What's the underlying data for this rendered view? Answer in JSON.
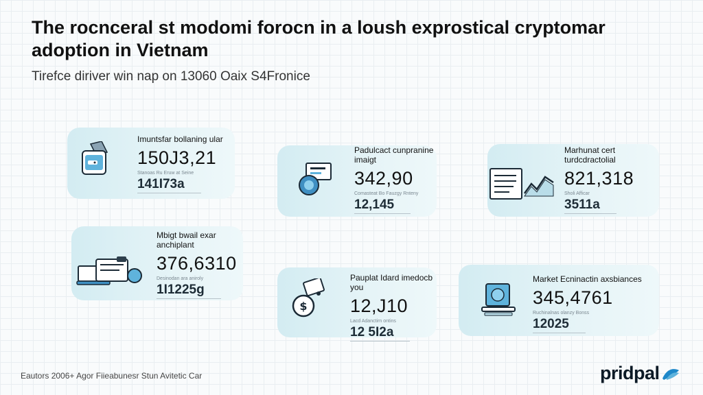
{
  "header": {
    "title": "The rocnceral st modomi forocn in a loush exprostical cryptomar adoption in Vietnam",
    "subtitle": "Tirefce diriver win nap on 13060 Oaix S4Fronice"
  },
  "cards": [
    {
      "label": "Imuntsfar bollaning ular",
      "value": "150J3,21",
      "note": "Stanoas Ru Eruw at Seine",
      "subvalue": "141I73a",
      "icon": "wallet-icon"
    },
    {
      "label": "Padulcact cunpranine imaigt",
      "value": "342,90",
      "note": "Comasteat Bo Fauzgy Rnteny",
      "subvalue": "12,145",
      "icon": "coin-card-icon"
    },
    {
      "label": "Marhunat cert turdcdractolial",
      "value": "821,318",
      "note": "Sholi Afficar",
      "subvalue": "3511a",
      "icon": "document-chart-icon"
    },
    {
      "label": "Mbigt bwail exar anchiplant",
      "value": "376,6310",
      "note": "Desinodan ara aniroly",
      "subvalue": "1I1225g",
      "icon": "laptop-payment-icon"
    },
    {
      "label": "Pauplat Idard imedocb you",
      "value": "12,J10",
      "note": "Lacd Adanctirn ontins",
      "subvalue": "12 5I2a",
      "icon": "dollar-coin-icon"
    },
    {
      "label": "Market Ecninactin axsbiances",
      "value": "345,4761",
      "note": "Ruchinalnas olanzy Bonss",
      "subvalue": "12025",
      "icon": "exchange-monitor-icon"
    }
  ],
  "footer": {
    "text": "Eautors 2006+ Agor Fiieabunesr Stun Avitetic Car"
  },
  "brand": {
    "name": "pridpal",
    "accent": "#1e88c9"
  }
}
